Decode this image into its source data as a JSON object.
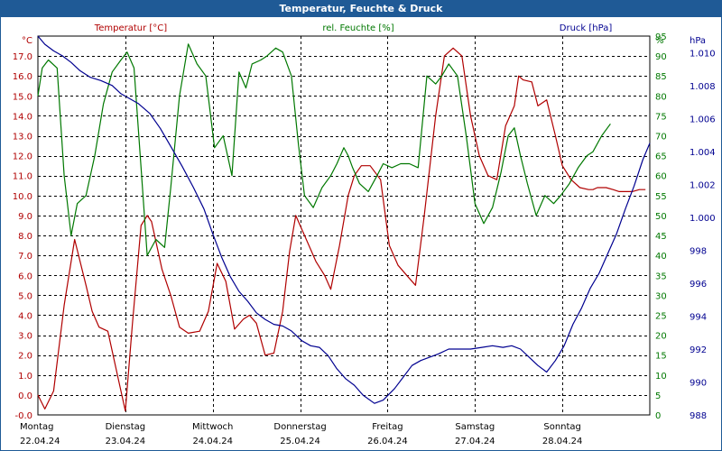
{
  "chart_data": {
    "type": "line",
    "title": "Temperatur, Feuchte & Druck",
    "series_labels": {
      "temperature": "Temperatur [°C]",
      "humidity": "rel. Feuchte [%]",
      "pressure": "Druck [hPa]"
    },
    "axes": {
      "left": {
        "unit": "°C",
        "min": -1,
        "max": 18,
        "ticks": [
          "-0.0",
          "0.0",
          "1.0",
          "2.0",
          "3.0",
          "4.0",
          "5.0",
          "6.0",
          "7.0",
          "8.0",
          "9.0",
          "10.0",
          "11.0",
          "12.0",
          "13.0",
          "14.0",
          "15.0",
          "16.0",
          "17.0"
        ]
      },
      "right_humidity": {
        "unit": "%",
        "min": 0,
        "max": 95,
        "ticks": [
          "0",
          "5",
          "10",
          "15",
          "20",
          "25",
          "30",
          "35",
          "40",
          "45",
          "50",
          "55",
          "60",
          "65",
          "70",
          "75",
          "80",
          "85",
          "90",
          "95"
        ]
      },
      "right_pressure": {
        "unit": "hPa",
        "min": 988,
        "max": 1011,
        "ticks": [
          "988",
          "990",
          "992",
          "994",
          "996",
          "998",
          "1.000",
          "1.002",
          "1.004",
          "1.006",
          "1.008",
          "1.010"
        ]
      },
      "x": {
        "min": 0,
        "max": 7,
        "days": [
          {
            "name": "Montag",
            "date": "22.04.24"
          },
          {
            "name": "Dienstag",
            "date": "23.04.24"
          },
          {
            "name": "Mittwoch",
            "date": "24.04.24"
          },
          {
            "name": "Donnerstag",
            "date": "25.04.24"
          },
          {
            "name": "Freitag",
            "date": "26.04.24"
          },
          {
            "name": "Samstag",
            "date": "27.04.24"
          },
          {
            "name": "Sonntag",
            "date": "28.04.24"
          }
        ]
      }
    },
    "colors": {
      "temperature": "#b00000",
      "humidity": "#007800",
      "pressure": "#000090",
      "grid": "#000000",
      "title_bg": "#1f5a96"
    },
    "series": [
      {
        "name": "temperature",
        "x": [
          0,
          0.08,
          0.18,
          0.3,
          0.42,
          0.55,
          0.62,
          0.7,
          0.8,
          0.92,
          1.0,
          1.08,
          1.18,
          1.25,
          1.3,
          1.42,
          1.52,
          1.62,
          1.72,
          1.85,
          1.95,
          2.05,
          2.15,
          2.25,
          2.35,
          2.42,
          2.5,
          2.6,
          2.7,
          2.8,
          2.88,
          2.95,
          3.02,
          3.1,
          3.18,
          3.28,
          3.35,
          3.45,
          3.55,
          3.62,
          3.7,
          3.8,
          3.92,
          4.02,
          4.12,
          4.22,
          4.32,
          4.42,
          4.55,
          4.65,
          4.75,
          4.85,
          4.95,
          5.05,
          5.15,
          5.25,
          5.35,
          5.45,
          5.5,
          5.55,
          5.65,
          5.72,
          5.82,
          5.92,
          6.0,
          6.1,
          6.2,
          6.3,
          6.35,
          6.4,
          6.5,
          6.58,
          6.65,
          6.72,
          6.8,
          6.88,
          6.95
        ],
        "values": [
          0,
          -0.7,
          0.2,
          4.5,
          7.8,
          5.5,
          4.2,
          3.4,
          3.2,
          0.8,
          -0.8,
          3.5,
          8.5,
          9.0,
          8.7,
          6.3,
          5.0,
          3.4,
          3.1,
          3.2,
          4.2,
          6.6,
          5.7,
          3.3,
          3.8,
          4.0,
          3.6,
          2.0,
          2.1,
          4.2,
          7.2,
          9.0,
          8.3,
          7.5,
          6.7,
          6.0,
          5.3,
          7.5,
          10.0,
          11.0,
          11.5,
          11.5,
          10.8,
          7.5,
          6.5,
          6.0,
          5.5,
          9.0,
          14.0,
          17.0,
          17.4,
          17.0,
          14.0,
          12.0,
          11.0,
          10.8,
          13.5,
          14.5,
          16.0,
          15.8,
          15.7,
          14.5,
          14.8,
          13.0,
          11.5,
          10.8,
          10.4,
          10.3,
          10.3,
          10.4,
          10.4,
          10.3,
          10.2,
          10.2,
          10.2,
          10.3,
          10.3
        ]
      },
      {
        "name": "humidity",
        "x": [
          0,
          0.05,
          0.12,
          0.22,
          0.3,
          0.38,
          0.45,
          0.55,
          0.65,
          0.75,
          0.85,
          0.95,
          1.02,
          1.1,
          1.18,
          1.25,
          1.35,
          1.45,
          1.52,
          1.62,
          1.72,
          1.82,
          1.92,
          2.02,
          2.12,
          2.22,
          2.3,
          2.38,
          2.45,
          2.55,
          2.62,
          2.72,
          2.8,
          2.9,
          2.98,
          3.05,
          3.15,
          3.25,
          3.35,
          3.42,
          3.5,
          3.55,
          3.6,
          3.68,
          3.78,
          3.88,
          3.95,
          4.05,
          4.15,
          4.25,
          4.35,
          4.45,
          4.55,
          4.62,
          4.7,
          4.8,
          4.9,
          5.0,
          5.1,
          5.2,
          5.3,
          5.38,
          5.45,
          5.52,
          5.6,
          5.7,
          5.8,
          5.9,
          5.98,
          6.08,
          6.18,
          6.28,
          6.35,
          6.45,
          6.55
        ],
        "values": [
          80,
          87,
          89,
          87,
          60,
          45,
          53,
          55,
          65,
          78,
          86,
          89,
          91,
          87,
          62,
          40,
          44,
          42,
          57,
          80,
          93,
          88,
          85,
          67,
          70,
          60,
          86,
          82,
          88,
          89,
          90,
          92,
          91,
          85,
          68,
          55,
          52,
          57,
          60,
          63,
          67,
          65,
          62,
          58,
          56,
          60,
          63,
          62,
          63,
          63,
          62,
          85,
          83,
          85,
          88,
          85,
          70,
          53,
          48,
          52,
          61,
          70,
          72,
          65,
          58,
          50,
          55,
          53,
          55,
          58,
          62,
          65,
          66,
          70,
          73
        ]
      },
      {
        "name": "pressure",
        "x": [
          0,
          0.08,
          0.18,
          0.28,
          0.38,
          0.48,
          0.6,
          0.72,
          0.85,
          0.95,
          1.05,
          1.15,
          1.28,
          1.4,
          1.52,
          1.65,
          1.78,
          1.9,
          2.0,
          2.1,
          2.2,
          2.3,
          2.4,
          2.5,
          2.6,
          2.7,
          2.8,
          2.9,
          3.02,
          3.12,
          3.22,
          3.32,
          3.42,
          3.52,
          3.62,
          3.72,
          3.85,
          3.95,
          4.08,
          4.18,
          4.28,
          4.38,
          4.48,
          4.58,
          4.7,
          4.82,
          4.95,
          5.08,
          5.2,
          5.32,
          5.42,
          5.52,
          5.62,
          5.72,
          5.82,
          5.92,
          6.02,
          6.12,
          6.22,
          6.32,
          6.42,
          6.52,
          6.62,
          6.72,
          6.82,
          6.92,
          7.0
        ],
        "values": [
          1011,
          1010.5,
          1010.1,
          1009.8,
          1009.4,
          1008.9,
          1008.5,
          1008.3,
          1008.0,
          1007.5,
          1007.2,
          1006.9,
          1006.3,
          1005.4,
          1004.3,
          1003.1,
          1001.8,
          1000.5,
          999.0,
          997.6,
          996.4,
          995.5,
          994.9,
          994.2,
          993.8,
          993.5,
          993.4,
          993.1,
          992.5,
          992.2,
          992.1,
          991.6,
          990.8,
          990.2,
          989.8,
          989.2,
          988.7,
          988.9,
          989.6,
          990.3,
          991.0,
          991.3,
          991.5,
          991.7,
          992.0,
          992.0,
          992.0,
          992.1,
          992.2,
          992.1,
          992.2,
          992.0,
          991.5,
          991.0,
          990.6,
          991.3,
          992.2,
          993.5,
          994.5,
          995.7,
          996.6,
          997.8,
          999.0,
          1000.5,
          1001.9,
          1003.5,
          1004.5
        ]
      }
    ]
  }
}
